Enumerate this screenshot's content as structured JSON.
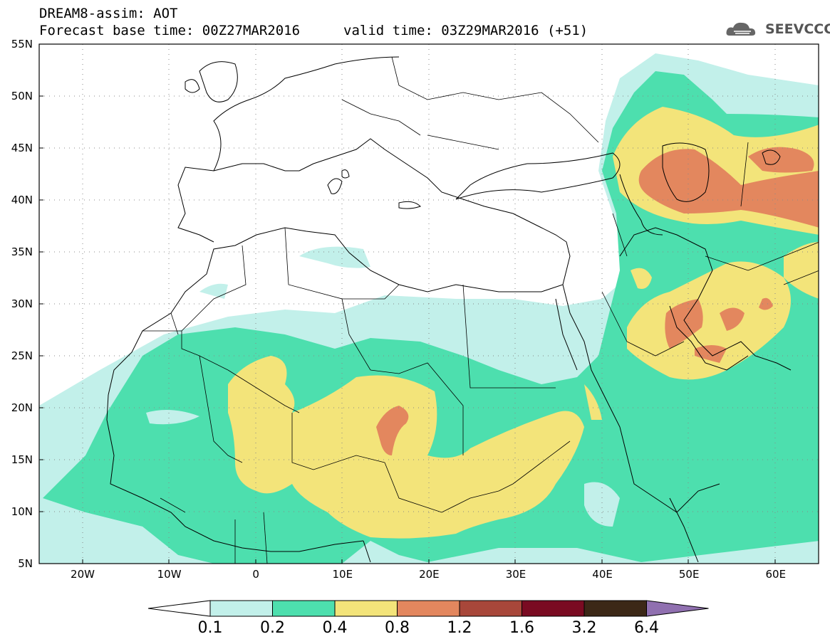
{
  "header": {
    "model": "DREAM8-assim: AOT",
    "base_time": "Forecast base time: 00Z27MAR2016",
    "valid_time": "valid time: 03Z29MAR2016 (+51)",
    "logo_text": "SEEVCCC",
    "logo_icon": "cloud-icon"
  },
  "map": {
    "lat_range": [
      5,
      55
    ],
    "lon_range": [
      -25,
      65
    ],
    "lat_labels": [
      "55N",
      "50N",
      "45N",
      "40N",
      "35N",
      "30N",
      "25N",
      "20N",
      "15N",
      "10N",
      "5N"
    ],
    "lon_labels": [
      "20W",
      "10W",
      "0",
      "10E",
      "20E",
      "30E",
      "40E",
      "50E",
      "60E"
    ],
    "grid": "dotted"
  },
  "legend": {
    "levels": [
      "0.1",
      "0.2",
      "0.4",
      "0.8",
      "1.2",
      "1.6",
      "3.2",
      "6.4"
    ],
    "colors": [
      "#c2f0ea",
      "#4ddfae",
      "#f3e47a",
      "#e3875e",
      "#a8473a",
      "#7a0b22",
      "#3c2817",
      "#9070b0"
    ],
    "extend": "both"
  }
}
